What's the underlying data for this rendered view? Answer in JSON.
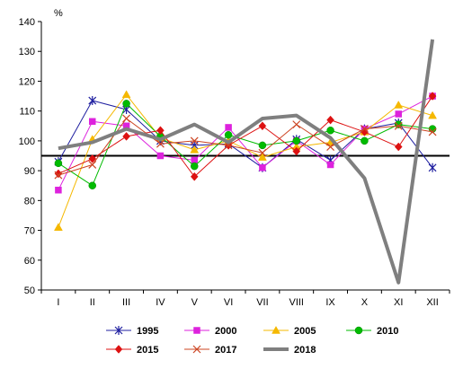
{
  "chart_data": {
    "type": "line",
    "title": "",
    "xlabel": "",
    "ylabel": "%",
    "ylim": [
      50,
      140
    ],
    "yticks": [
      50,
      60,
      70,
      80,
      90,
      100,
      110,
      120,
      130,
      140
    ],
    "categories": [
      "I",
      "II",
      "III",
      "IV",
      "V",
      "VI",
      "VII",
      "VIII",
      "IX",
      "X",
      "XI",
      "XII"
    ],
    "reference_line": 95,
    "grid": false,
    "legend_position": "bottom",
    "series": [
      {
        "name": "1995",
        "color": "#1f1fa0",
        "marker": "star",
        "width": 1,
        "values": [
          93,
          113.5,
          110.5,
          100,
          98.5,
          99,
          91,
          100.5,
          93.5,
          104,
          106,
          91
        ]
      },
      {
        "name": "2000",
        "color": "#dd22dd",
        "marker": "square",
        "width": 1,
        "values": [
          83.5,
          106.5,
          105,
          95,
          93.5,
          104.5,
          91,
          100,
          92,
          104,
          109,
          115
        ]
      },
      {
        "name": "2005",
        "color": "#f5b800",
        "marker": "triangle",
        "width": 1,
        "values": [
          71,
          100.5,
          115.5,
          101,
          97,
          100,
          94.5,
          98,
          99.5,
          103,
          112,
          108.5
        ]
      },
      {
        "name": "2010",
        "color": "#00bb00",
        "marker": "circle",
        "width": 1,
        "values": [
          92.5,
          85,
          112.5,
          101.5,
          91.5,
          102,
          98.5,
          100,
          103.5,
          100,
          105.5,
          104
        ]
      },
      {
        "name": "2015",
        "color": "#dd1111",
        "marker": "diamond",
        "width": 1,
        "values": [
          89,
          94,
          101.5,
          103.5,
          88,
          98.5,
          105,
          96.5,
          107,
          103,
          98,
          115
        ]
      },
      {
        "name": "2017",
        "color": "#cc4422",
        "marker": "x",
        "width": 1,
        "values": [
          88.5,
          92,
          107.5,
          99,
          100,
          98.5,
          96,
          105.5,
          98,
          104,
          105,
          103
        ]
      },
      {
        "name": "2018",
        "color": "#7f7f7f",
        "marker": "none",
        "width": 4,
        "values": [
          97.5,
          99.5,
          104,
          100.5,
          105.5,
          99.5,
          107.5,
          108.5,
          101,
          87.5,
          52.5,
          134
        ]
      }
    ]
  }
}
